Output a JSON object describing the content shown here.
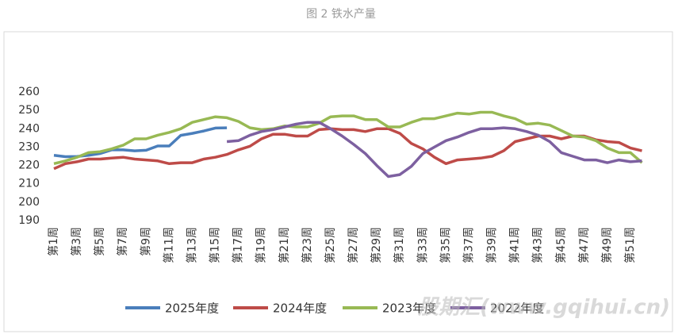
{
  "chart_data": {
    "type": "line",
    "title": "图 2 铁水产量",
    "categories": [
      "第1周",
      null,
      "第3周",
      null,
      "第5周",
      null,
      "第7周",
      null,
      "第9周",
      null,
      "第11周",
      null,
      "第13周",
      null,
      "第15周",
      null,
      "第17周",
      null,
      "第19周",
      null,
      "第21周",
      null,
      "第23周",
      null,
      "第25周",
      null,
      "第27周",
      null,
      "第29周",
      null,
      "第31周",
      null,
      "第33周",
      null,
      "第35周",
      null,
      "第37周",
      null,
      "第39周",
      null,
      "第41周",
      null,
      "第43周",
      null,
      "第45周",
      null,
      "第47周",
      null,
      "第49周",
      null,
      "第51周",
      null
    ],
    "series": [
      {
        "name": "2025年度",
        "color": "#4a7ebb",
        "values": [
          225.5,
          224.8,
          224.9,
          225.5,
          226.5,
          228.5,
          228.5,
          228,
          228.3,
          230.6,
          230.6,
          236.4,
          237.5,
          238.8,
          240.4,
          240.5,
          null,
          null,
          null,
          null,
          null,
          null,
          null,
          null,
          null,
          null,
          null,
          null,
          null,
          null,
          null,
          null,
          null,
          null,
          null,
          null,
          null,
          null,
          null,
          null,
          null,
          null,
          null,
          null,
          null,
          null,
          null,
          null,
          null,
          null,
          null,
          null
        ]
      },
      {
        "name": "2024年度",
        "color": "#be4b48",
        "values": [
          218.2,
          221,
          222,
          223.5,
          223.5,
          224,
          224.5,
          223.5,
          223,
          222.5,
          221,
          221.5,
          221.5,
          223.5,
          224.5,
          226,
          228.5,
          230.5,
          234.5,
          237,
          237,
          236,
          236,
          239.5,
          240,
          239.5,
          239.5,
          238.5,
          240,
          240,
          237.5,
          232,
          229,
          224.5,
          221,
          223,
          223.5,
          224,
          225,
          228,
          233,
          234.5,
          236,
          236,
          234.5,
          236,
          236,
          234,
          233,
          232.5,
          229.5,
          228
        ]
      },
      {
        "name": "2023年度",
        "color": "#98b954",
        "values": [
          221,
          222.5,
          224.5,
          227,
          227.5,
          229,
          231,
          234.5,
          234.5,
          236.5,
          238,
          240,
          243.5,
          245,
          246.5,
          246,
          244,
          240.5,
          239.5,
          240,
          241.5,
          241,
          241,
          243,
          246.5,
          247,
          247,
          245,
          245,
          241,
          241,
          243.5,
          245.5,
          245.5,
          247,
          248.5,
          248,
          249,
          249,
          247,
          245.5,
          242.5,
          243,
          242,
          239,
          236,
          235.5,
          233.5,
          229.5,
          227,
          227,
          221.5
        ]
      },
      {
        "name": "2022年度",
        "color": "#7d60a0",
        "values": [
          null,
          null,
          null,
          null,
          null,
          null,
          null,
          null,
          null,
          null,
          null,
          null,
          null,
          null,
          null,
          233,
          233.5,
          236.5,
          238.5,
          239.5,
          241,
          242.5,
          243.5,
          243.5,
          240,
          236,
          231.5,
          226.5,
          220,
          214,
          215,
          219.5,
          226.5,
          230,
          233.5,
          235.5,
          238,
          240,
          240,
          240.5,
          240,
          238.5,
          236.5,
          233,
          227,
          225,
          223,
          223,
          221.5,
          223,
          222,
          222.5
        ]
      }
    ],
    "ylim": [
      190,
      260
    ],
    "yticks": [
      190,
      200,
      210,
      220,
      230,
      240,
      250,
      260
    ],
    "grid": false,
    "legend": "bottom",
    "watermark": "股期汇(www.gqihui.cn)"
  }
}
